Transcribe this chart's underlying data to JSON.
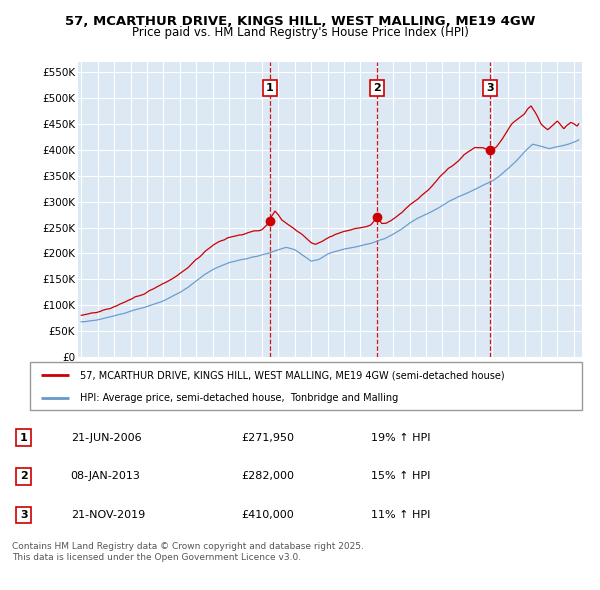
{
  "title1": "57, MCARTHUR DRIVE, KINGS HILL, WEST MALLING, ME19 4GW",
  "title2": "Price paid vs. HM Land Registry's House Price Index (HPI)",
  "ylabel_ticks": [
    "£0",
    "£50K",
    "£100K",
    "£150K",
    "£200K",
    "£250K",
    "£300K",
    "£350K",
    "£400K",
    "£450K",
    "£500K",
    "£550K"
  ],
  "ytick_values": [
    0,
    50000,
    100000,
    150000,
    200000,
    250000,
    300000,
    350000,
    400000,
    450000,
    500000,
    550000
  ],
  "ylim": [
    0,
    570000
  ],
  "xlim_start": 1994.8,
  "xlim_end": 2025.5,
  "sale_dates": [
    2006.47,
    2013.03,
    2019.89
  ],
  "sale_labels": [
    "1",
    "2",
    "3"
  ],
  "sale_prices": [
    271950,
    282000,
    410000
  ],
  "legend_line1": "57, MCARTHUR DRIVE, KINGS HILL, WEST MALLING, ME19 4GW (semi-detached house)",
  "legend_line2": "HPI: Average price, semi-detached house,  Tonbridge and Malling",
  "table_rows": [
    [
      "1",
      "21-JUN-2006",
      "£271,950",
      "19% ↑ HPI"
    ],
    [
      "2",
      "08-JAN-2013",
      "£282,000",
      "15% ↑ HPI"
    ],
    [
      "3",
      "21-NOV-2019",
      "£410,000",
      "11% ↑ HPI"
    ]
  ],
  "footer": "Contains HM Land Registry data © Crown copyright and database right 2025.\nThis data is licensed under the Open Government Licence v3.0.",
  "plot_bg_color": "#dce9f5",
  "grid_color": "#ffffff",
  "red_line_color": "#cc0000",
  "blue_line_color": "#6699cc",
  "dashed_line_color": "#cc0000",
  "hpi_keypoints": [
    [
      1995.0,
      68000
    ],
    [
      1995.5,
      70000
    ],
    [
      1996.0,
      73000
    ],
    [
      1996.5,
      76000
    ],
    [
      1997.0,
      80000
    ],
    [
      1997.5,
      84000
    ],
    [
      1998.0,
      88000
    ],
    [
      1998.5,
      93000
    ],
    [
      1999.0,
      98000
    ],
    [
      1999.5,
      104000
    ],
    [
      2000.0,
      110000
    ],
    [
      2000.5,
      118000
    ],
    [
      2001.0,
      126000
    ],
    [
      2001.5,
      136000
    ],
    [
      2002.0,
      148000
    ],
    [
      2002.5,
      160000
    ],
    [
      2003.0,
      170000
    ],
    [
      2003.5,
      178000
    ],
    [
      2004.0,
      184000
    ],
    [
      2004.5,
      188000
    ],
    [
      2005.0,
      192000
    ],
    [
      2005.5,
      196000
    ],
    [
      2006.0,
      200000
    ],
    [
      2006.5,
      204000
    ],
    [
      2007.0,
      210000
    ],
    [
      2007.5,
      214000
    ],
    [
      2008.0,
      210000
    ],
    [
      2008.5,
      200000
    ],
    [
      2009.0,
      188000
    ],
    [
      2009.5,
      192000
    ],
    [
      2010.0,
      202000
    ],
    [
      2010.5,
      208000
    ],
    [
      2011.0,
      212000
    ],
    [
      2011.5,
      214000
    ],
    [
      2012.0,
      218000
    ],
    [
      2012.5,
      222000
    ],
    [
      2013.0,
      228000
    ],
    [
      2013.5,
      233000
    ],
    [
      2014.0,
      242000
    ],
    [
      2014.5,
      252000
    ],
    [
      2015.0,
      263000
    ],
    [
      2015.5,
      272000
    ],
    [
      2016.0,
      280000
    ],
    [
      2016.5,
      288000
    ],
    [
      2017.0,
      298000
    ],
    [
      2017.5,
      308000
    ],
    [
      2018.0,
      316000
    ],
    [
      2018.5,
      322000
    ],
    [
      2019.0,
      330000
    ],
    [
      2019.5,
      338000
    ],
    [
      2020.0,
      344000
    ],
    [
      2020.5,
      355000
    ],
    [
      2021.0,
      368000
    ],
    [
      2021.5,
      382000
    ],
    [
      2022.0,
      400000
    ],
    [
      2022.5,
      415000
    ],
    [
      2023.0,
      410000
    ],
    [
      2023.5,
      405000
    ],
    [
      2024.0,
      408000
    ],
    [
      2024.5,
      412000
    ],
    [
      2025.0,
      418000
    ],
    [
      2025.3,
      422000
    ]
  ],
  "red_keypoints": [
    [
      1995.0,
      80000
    ],
    [
      1995.5,
      84000
    ],
    [
      1996.0,
      88000
    ],
    [
      1996.5,
      93000
    ],
    [
      1997.0,
      98000
    ],
    [
      1997.5,
      104000
    ],
    [
      1998.0,
      110000
    ],
    [
      1998.5,
      118000
    ],
    [
      1999.0,
      127000
    ],
    [
      1999.5,
      135000
    ],
    [
      2000.0,
      144000
    ],
    [
      2000.5,
      153000
    ],
    [
      2001.0,
      163000
    ],
    [
      2001.5,
      175000
    ],
    [
      2002.0,
      190000
    ],
    [
      2002.5,
      205000
    ],
    [
      2003.0,
      218000
    ],
    [
      2003.5,
      228000
    ],
    [
      2004.0,
      235000
    ],
    [
      2004.5,
      240000
    ],
    [
      2005.0,
      245000
    ],
    [
      2005.5,
      250000
    ],
    [
      2006.0,
      255000
    ],
    [
      2006.3,
      263000
    ],
    [
      2006.47,
      271950
    ],
    [
      2006.6,
      282000
    ],
    [
      2006.8,
      292000
    ],
    [
      2007.0,
      285000
    ],
    [
      2007.2,
      275000
    ],
    [
      2007.5,
      268000
    ],
    [
      2007.8,
      262000
    ],
    [
      2008.2,
      255000
    ],
    [
      2008.5,
      248000
    ],
    [
      2008.8,
      240000
    ],
    [
      2009.0,
      235000
    ],
    [
      2009.3,
      232000
    ],
    [
      2009.6,
      235000
    ],
    [
      2010.0,
      240000
    ],
    [
      2010.3,
      245000
    ],
    [
      2010.6,
      248000
    ],
    [
      2011.0,
      252000
    ],
    [
      2011.4,
      255000
    ],
    [
      2011.8,
      258000
    ],
    [
      2012.0,
      260000
    ],
    [
      2012.3,
      263000
    ],
    [
      2012.6,
      267000
    ],
    [
      2013.03,
      282000
    ],
    [
      2013.3,
      270000
    ],
    [
      2013.6,
      272000
    ],
    [
      2014.0,
      280000
    ],
    [
      2014.5,
      292000
    ],
    [
      2015.0,
      308000
    ],
    [
      2015.5,
      320000
    ],
    [
      2016.0,
      335000
    ],
    [
      2016.5,
      350000
    ],
    [
      2017.0,
      368000
    ],
    [
      2017.3,
      378000
    ],
    [
      2017.6,
      385000
    ],
    [
      2018.0,
      395000
    ],
    [
      2018.3,
      405000
    ],
    [
      2018.6,
      412000
    ],
    [
      2019.0,
      418000
    ],
    [
      2019.5,
      415000
    ],
    [
      2019.89,
      410000
    ],
    [
      2020.0,
      408000
    ],
    [
      2020.3,
      415000
    ],
    [
      2020.6,
      428000
    ],
    [
      2021.0,
      448000
    ],
    [
      2021.3,
      460000
    ],
    [
      2021.6,
      470000
    ],
    [
      2022.0,
      480000
    ],
    [
      2022.2,
      490000
    ],
    [
      2022.4,
      498000
    ],
    [
      2022.6,
      488000
    ],
    [
      2022.8,
      475000
    ],
    [
      2023.0,
      462000
    ],
    [
      2023.2,
      455000
    ],
    [
      2023.4,
      450000
    ],
    [
      2023.6,
      455000
    ],
    [
      2023.8,
      460000
    ],
    [
      2024.0,
      465000
    ],
    [
      2024.2,
      458000
    ],
    [
      2024.4,
      452000
    ],
    [
      2024.6,
      460000
    ],
    [
      2024.8,
      465000
    ],
    [
      2025.0,
      462000
    ],
    [
      2025.2,
      458000
    ],
    [
      2025.3,
      462000
    ]
  ]
}
